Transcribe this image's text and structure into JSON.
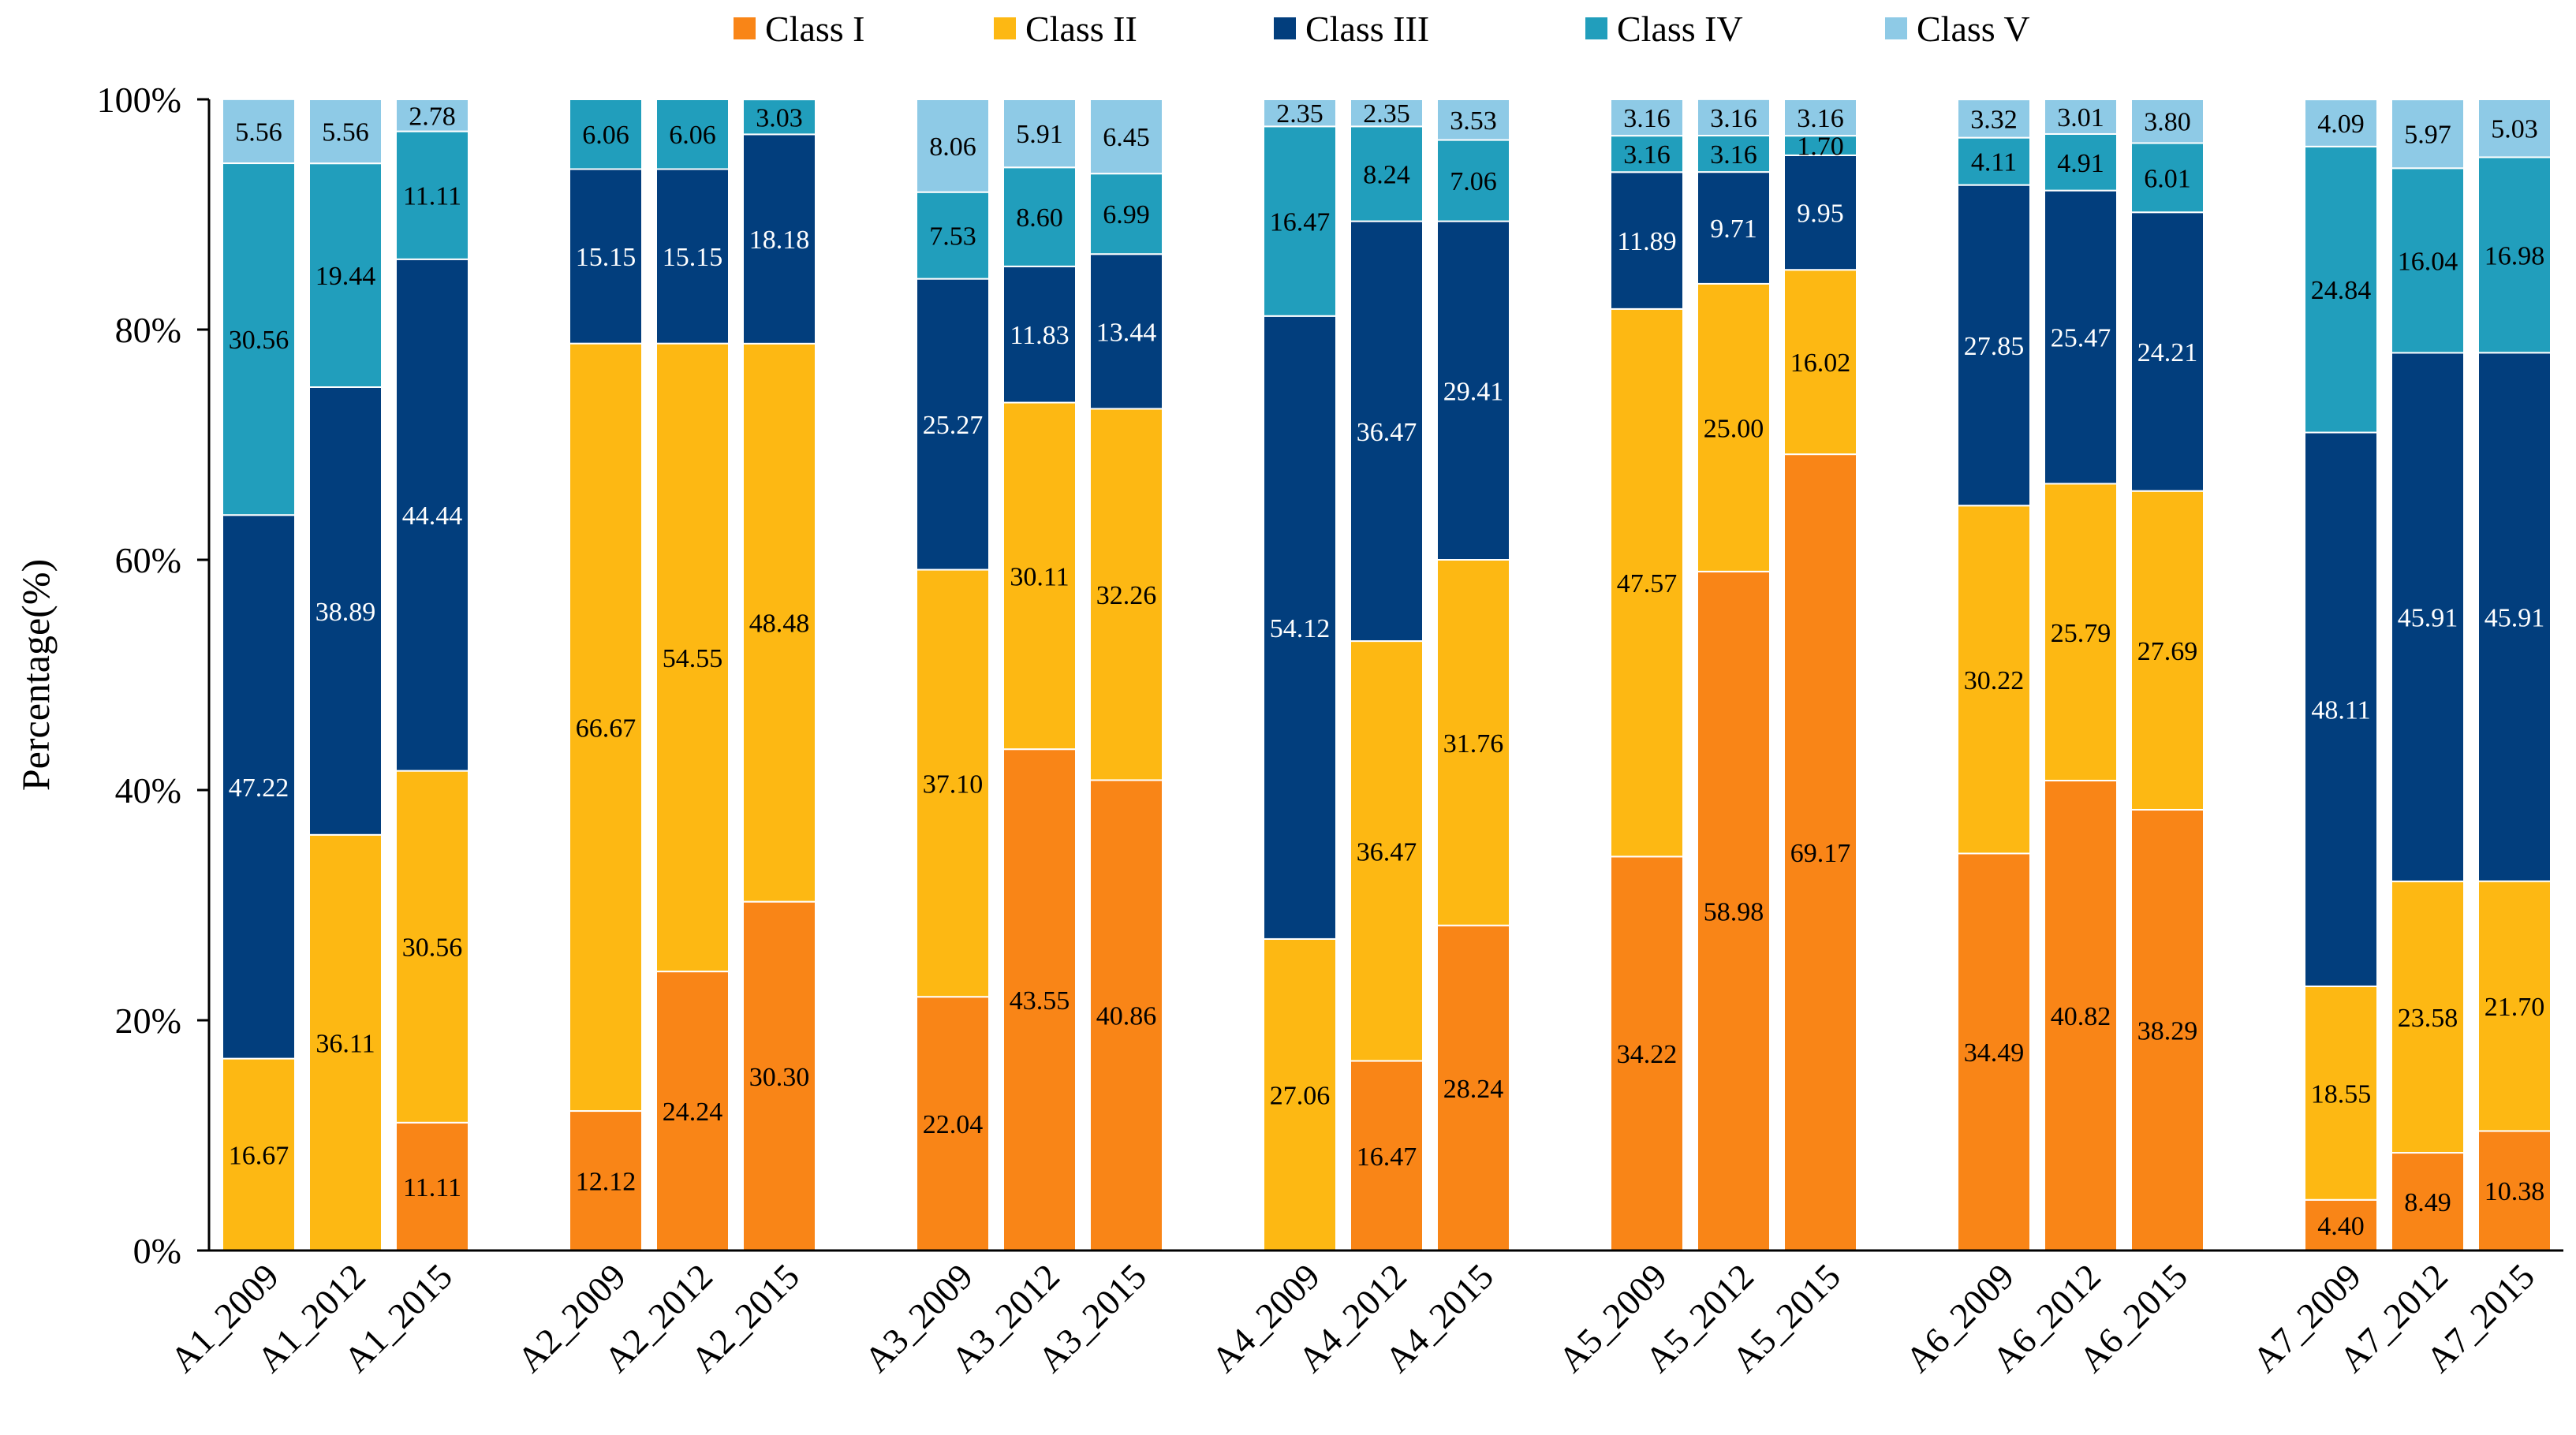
{
  "chart_data": {
    "type": "bar",
    "stacked": true,
    "title": "",
    "xlabel": "",
    "ylabel": "Percentage(%)",
    "ylim": [
      0,
      100
    ],
    "y_ticks": [
      "0%",
      "20%",
      "40%",
      "60%",
      "80%",
      "100%"
    ],
    "legend_position": "top",
    "categories": [
      "A1_2009",
      "A1_2012",
      "A1_2015",
      "A2_2009",
      "A2_2012",
      "A2_2015",
      "A3_2009",
      "A3_2012",
      "A3_2015",
      "A4_2009",
      "A4_2012",
      "A4_2015",
      "A5_2009",
      "A5_2012",
      "A5_2015",
      "A6_2009",
      "A6_2012",
      "A6_2015",
      "A7_2009",
      "A7_2012",
      "A7_2015"
    ],
    "series": [
      {
        "name": "Class I",
        "color": "#F98517",
        "values": [
          0,
          0,
          11.11,
          12.12,
          24.24,
          30.3,
          22.04,
          43.55,
          40.86,
          0,
          16.47,
          28.24,
          34.22,
          58.98,
          69.17,
          34.49,
          40.82,
          38.29,
          4.4,
          8.49,
          10.38
        ],
        "labels": [
          "",
          "",
          "11.11",
          "12.12",
          "24.24",
          "30.30",
          "22.04",
          "43.55",
          "40.86",
          "",
          "16.47",
          "28.24",
          "34.22",
          "58.98",
          "69.17",
          "34.49",
          "40.82",
          "38.29",
          "4.40",
          "8.49",
          "10.38"
        ]
      },
      {
        "name": "Class II",
        "color": "#FDB813",
        "values": [
          16.67,
          36.11,
          30.56,
          66.67,
          54.55,
          48.48,
          37.1,
          30.11,
          32.26,
          27.06,
          36.47,
          31.76,
          47.57,
          25.0,
          16.02,
          30.22,
          25.79,
          27.69,
          18.55,
          23.58,
          21.7
        ],
        "labels": [
          "16.67",
          "36.11",
          "30.56",
          "66.67",
          "54.55",
          "48.48",
          "37.10",
          "30.11",
          "32.26",
          "27.06",
          "36.47",
          "31.76",
          "47.57",
          "25.00",
          "16.02",
          "30.22",
          "25.79",
          "27.69",
          "18.55",
          "23.58",
          "21.70"
        ]
      },
      {
        "name": "Class III",
        "color": "#023E7D",
        "values": [
          47.22,
          38.89,
          44.44,
          15.15,
          15.15,
          18.18,
          25.27,
          11.83,
          13.44,
          54.12,
          36.47,
          29.41,
          11.89,
          9.71,
          9.95,
          27.85,
          25.47,
          24.21,
          48.11,
          45.91,
          45.91
        ],
        "labels": [
          "47.22",
          "38.89",
          "44.44",
          "15.15",
          "15.15",
          "18.18",
          "25.27",
          "11.83",
          "13.44",
          "54.12",
          "36.47",
          "29.41",
          "11.89",
          "9.71",
          "9.95",
          "27.85",
          "25.47",
          "24.21",
          "48.11",
          "45.91",
          "45.91"
        ]
      },
      {
        "name": "Class IV",
        "color": "#219EBC",
        "values": [
          30.56,
          19.44,
          11.11,
          6.06,
          6.06,
          3.03,
          7.53,
          8.6,
          6.99,
          16.47,
          8.24,
          7.06,
          3.16,
          3.16,
          1.7,
          4.11,
          4.91,
          6.01,
          24.84,
          16.04,
          16.98
        ],
        "labels": [
          "30.56",
          "19.44",
          "11.11",
          "6.06",
          "6.06",
          "3.03",
          "7.53",
          "8.60",
          "6.99",
          "16.47",
          "8.24",
          "7.06",
          "3.16",
          "3.16",
          "1.70",
          "4.11",
          "4.91",
          "6.01",
          "24.84",
          "16.04",
          "16.98"
        ]
      },
      {
        "name": "Class V",
        "color": "#8ECAE6",
        "values": [
          5.56,
          5.56,
          2.78,
          0,
          0,
          0,
          8.06,
          5.91,
          6.45,
          2.35,
          2.35,
          3.53,
          3.16,
          3.16,
          3.16,
          3.32,
          3.01,
          3.8,
          4.09,
          5.97,
          5.03
        ],
        "labels": [
          "5.56",
          "5.56",
          "2.78",
          "",
          "",
          "",
          "8.06",
          "5.91",
          "6.45",
          "2.35",
          "2.35",
          "3.53",
          "3.16",
          "3.16",
          "3.16",
          "3.32",
          "3.01",
          "3.80",
          "4.09",
          "5.97",
          "5.03"
        ]
      }
    ]
  }
}
